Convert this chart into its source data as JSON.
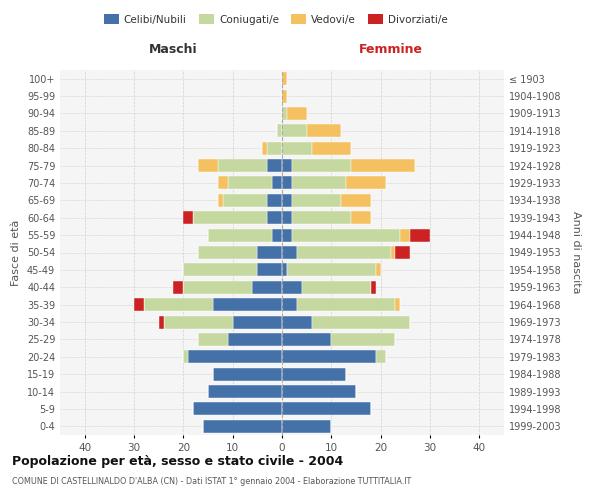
{
  "age_groups": [
    "0-4",
    "5-9",
    "10-14",
    "15-19",
    "20-24",
    "25-29",
    "30-34",
    "35-39",
    "40-44",
    "45-49",
    "50-54",
    "55-59",
    "60-64",
    "65-69",
    "70-74",
    "75-79",
    "80-84",
    "85-89",
    "90-94",
    "95-99",
    "100+"
  ],
  "birth_years": [
    "1999-2003",
    "1994-1998",
    "1989-1993",
    "1984-1988",
    "1979-1983",
    "1974-1978",
    "1969-1973",
    "1964-1968",
    "1959-1963",
    "1954-1958",
    "1949-1953",
    "1944-1948",
    "1939-1943",
    "1934-1938",
    "1929-1933",
    "1924-1928",
    "1919-1923",
    "1914-1918",
    "1909-1913",
    "1904-1908",
    "≤ 1903"
  ],
  "colors": {
    "celibi": "#4472a8",
    "coniugati": "#c5d8a0",
    "vedovi": "#f5c060",
    "divorziati": "#cc2222"
  },
  "maschi": {
    "celibi": [
      16,
      18,
      15,
      14,
      19,
      11,
      10,
      14,
      6,
      5,
      5,
      2,
      3,
      3,
      2,
      3,
      0,
      0,
      0,
      0,
      0
    ],
    "coniugati": [
      0,
      0,
      0,
      0,
      1,
      6,
      14,
      14,
      14,
      15,
      12,
      13,
      15,
      9,
      9,
      10,
      3,
      1,
      0,
      0,
      0
    ],
    "vedovi": [
      0,
      0,
      0,
      0,
      0,
      0,
      0,
      0,
      0,
      0,
      0,
      0,
      0,
      1,
      2,
      4,
      1,
      0,
      0,
      0,
      0
    ],
    "divorziati": [
      0,
      0,
      0,
      0,
      0,
      0,
      1,
      2,
      2,
      0,
      0,
      0,
      2,
      0,
      0,
      0,
      0,
      0,
      0,
      0,
      0
    ]
  },
  "femmine": {
    "celibi": [
      10,
      18,
      15,
      13,
      19,
      10,
      6,
      3,
      4,
      1,
      3,
      2,
      2,
      2,
      2,
      2,
      0,
      0,
      0,
      0,
      0
    ],
    "coniugati": [
      0,
      0,
      0,
      0,
      2,
      13,
      20,
      20,
      14,
      18,
      19,
      22,
      12,
      10,
      11,
      12,
      6,
      5,
      1,
      0,
      0
    ],
    "vedovi": [
      0,
      0,
      0,
      0,
      0,
      0,
      0,
      1,
      0,
      1,
      1,
      2,
      4,
      6,
      8,
      13,
      8,
      7,
      4,
      1,
      1
    ],
    "divorziati": [
      0,
      0,
      0,
      0,
      0,
      0,
      0,
      0,
      1,
      0,
      3,
      4,
      0,
      0,
      0,
      0,
      0,
      0,
      0,
      0,
      0
    ]
  },
  "xlim": 45,
  "xlabel_maschi": "Maschi",
  "xlabel_femmine": "Femmine",
  "ylabel": "Fasce di età",
  "ylabel_right": "Anni di nascita",
  "title": "Popolazione per età, sesso e stato civile - 2004",
  "subtitle": "COMUNE DI CASTELLINALDO D'ALBA (CN) - Dati ISTAT 1° gennaio 2004 - Elaborazione TUTTITALIA.IT",
  "legend_labels": [
    "Celibi/Nubili",
    "Coniugati/e",
    "Vedovi/e",
    "Divorziati/e"
  ],
  "bg_color": "#f5f5f5",
  "bar_height": 0.75
}
